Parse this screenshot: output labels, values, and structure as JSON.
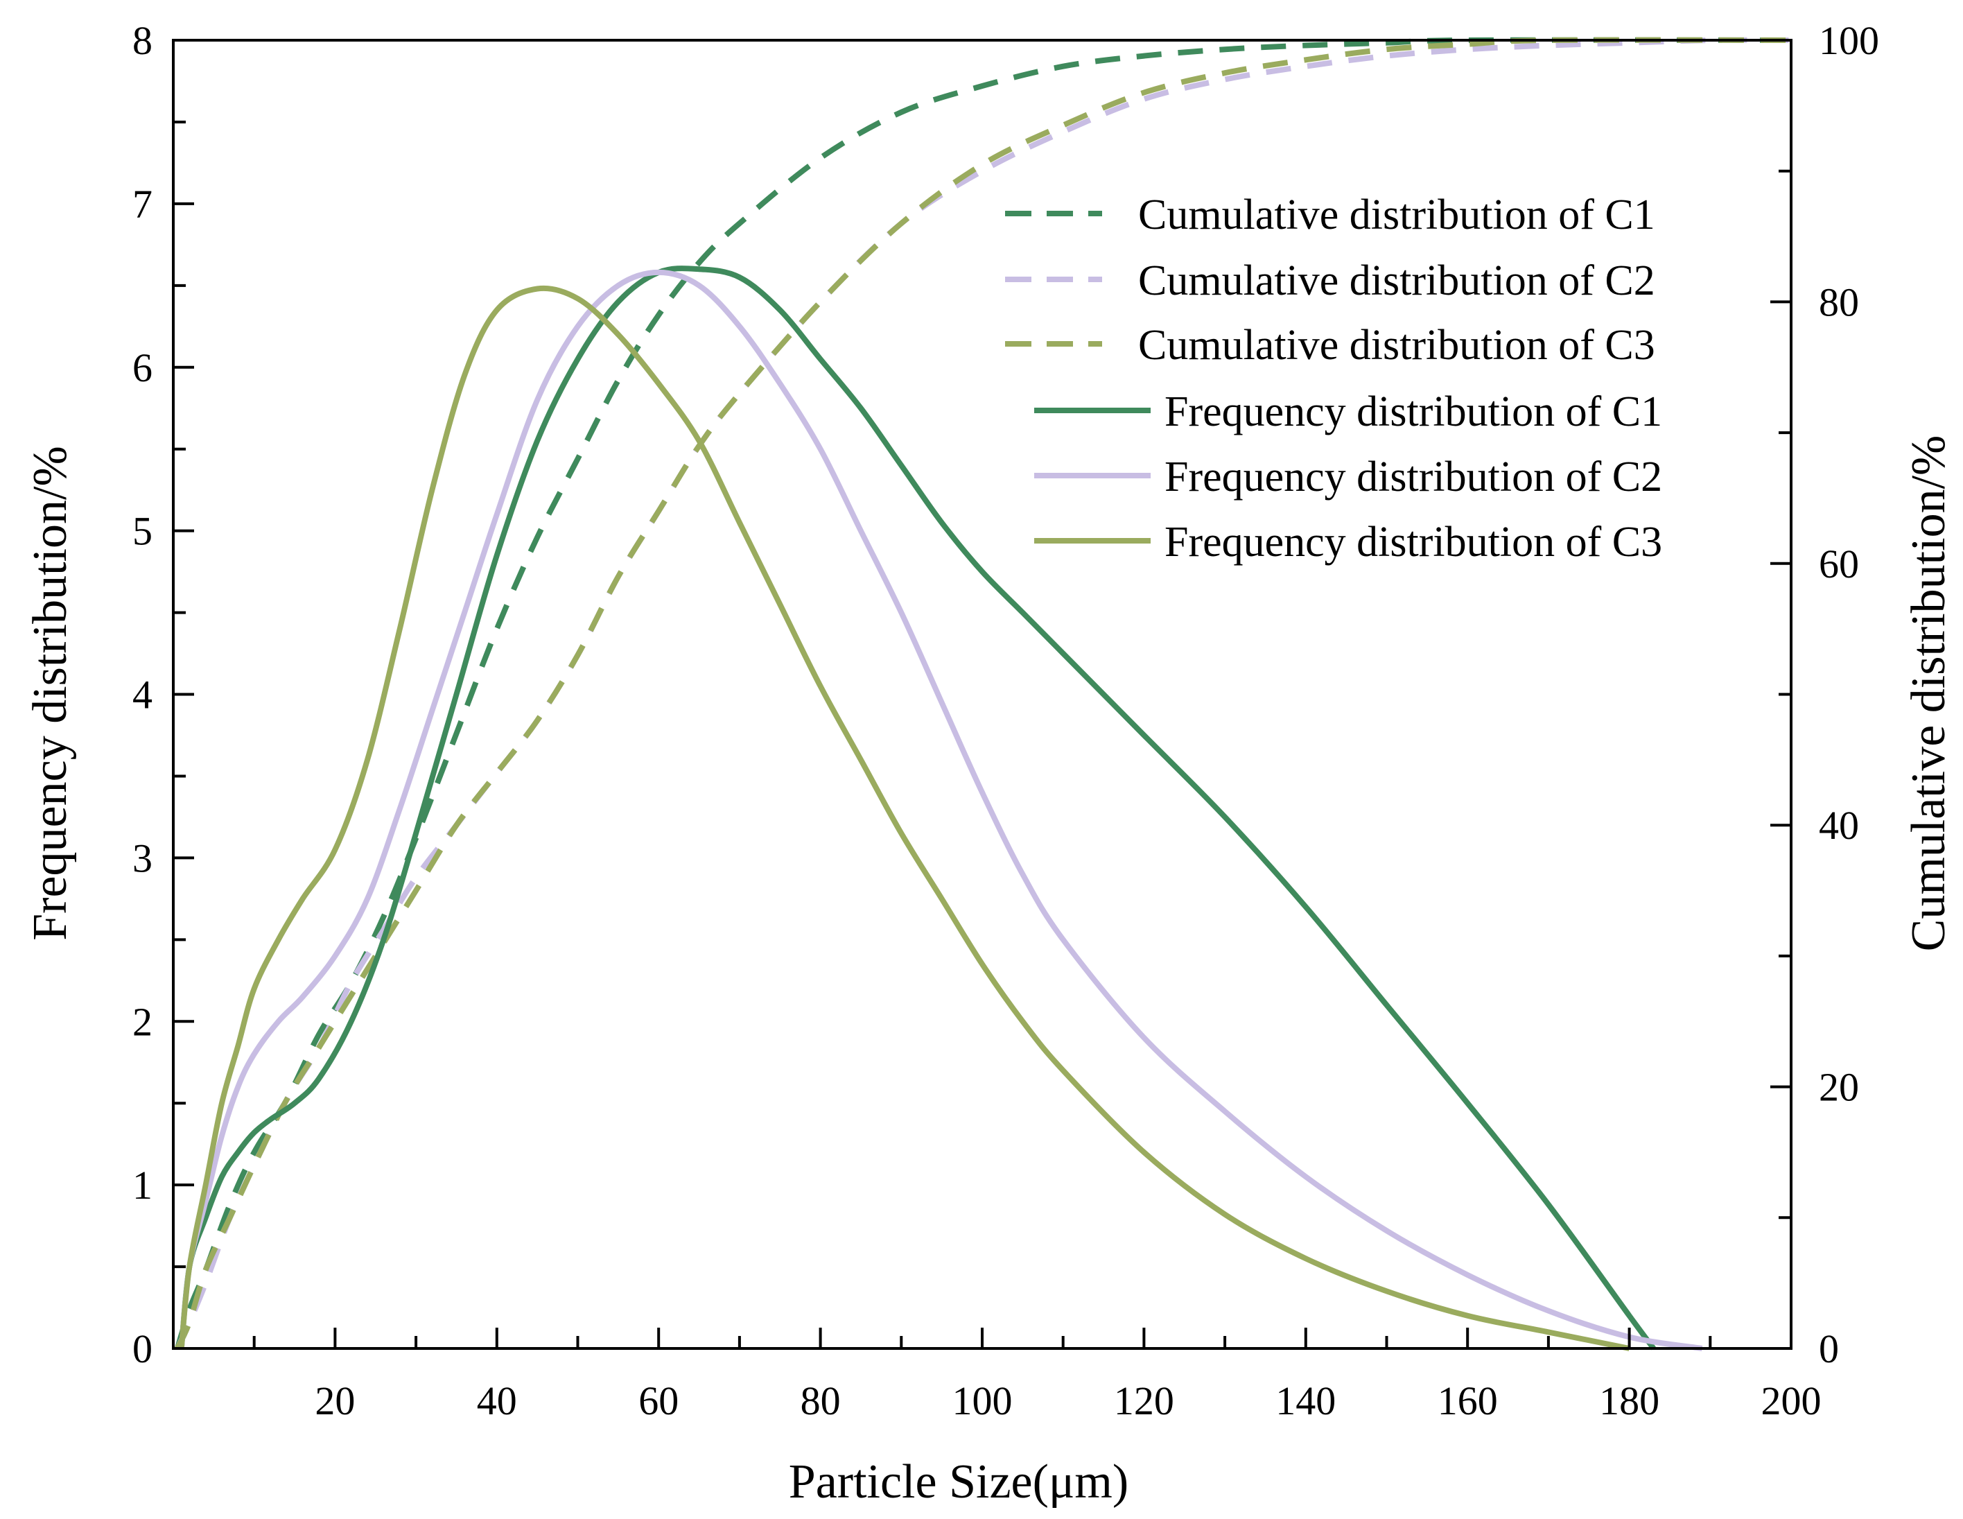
{
  "chart_data": {
    "type": "line",
    "title": "",
    "xlabel": "Particle Size(μm)",
    "ylabel": "Frequency distribution/%",
    "y2label": "Cumulative distribution/%",
    "xlim": [
      0,
      200
    ],
    "ylim": [
      0,
      8
    ],
    "y2lim": [
      0,
      100
    ],
    "x_ticks": [
      20,
      40,
      60,
      80,
      100,
      120,
      140,
      160,
      180,
      200
    ],
    "y_ticks": [
      0,
      1,
      2,
      3,
      4,
      5,
      6,
      7,
      8
    ],
    "y2_ticks": [
      0,
      20,
      40,
      60,
      80,
      100
    ],
    "legend_position": "right",
    "colors": {
      "C1": "#3f8a5c",
      "C2": "#c8bde3",
      "C3": "#9aab5e"
    },
    "series": [
      {
        "name": "Cumulative distribution of C1",
        "axis": "right",
        "style": "dashed",
        "color_key": "C1",
        "x": [
          0.5,
          2,
          4,
          7,
          10,
          14,
          18,
          22,
          26,
          30,
          35,
          40,
          45,
          50,
          55,
          60,
          65,
          70,
          80,
          90,
          100,
          110,
          120,
          130,
          140,
          150,
          160,
          200
        ],
        "y": [
          0,
          3,
          6,
          11,
          15,
          19,
          24,
          28,
          33,
          39,
          47,
          55,
          62,
          68,
          74,
          79,
          83,
          86,
          91,
          94.5,
          96.5,
          98,
          98.8,
          99.3,
          99.6,
          99.8,
          100,
          100
        ]
      },
      {
        "name": "Cumulative distribution of C2",
        "axis": "right",
        "style": "dashed",
        "color_key": "C2",
        "x": [
          0.5,
          2,
          4,
          7,
          10,
          14,
          18,
          22,
          26,
          30,
          35,
          40,
          45,
          50,
          55,
          60,
          65,
          70,
          80,
          90,
          100,
          110,
          120,
          130,
          140,
          150,
          160,
          170,
          180,
          190,
          200
        ],
        "y": [
          0,
          2,
          5,
          10,
          14,
          19,
          23,
          28,
          32,
          36,
          40,
          44,
          48,
          53,
          59,
          64,
          69,
          73,
          80,
          86,
          90,
          93,
          95.5,
          97,
          98,
          98.8,
          99.3,
          99.6,
          99.8,
          100,
          100
        ]
      },
      {
        "name": "Cumulative distribution of C3",
        "axis": "right",
        "style": "dashed",
        "color_key": "C3",
        "x": [
          0.5,
          2,
          4,
          7,
          10,
          14,
          18,
          22,
          26,
          30,
          35,
          40,
          45,
          50,
          55,
          60,
          65,
          70,
          80,
          90,
          100,
          110,
          120,
          130,
          140,
          150,
          160,
          170,
          200
        ],
        "y": [
          0,
          2,
          6,
          10,
          14,
          19,
          23,
          27,
          31,
          35,
          40,
          44,
          48,
          53,
          59,
          64,
          69,
          73,
          80,
          86,
          90.5,
          93.5,
          96,
          97.5,
          98.5,
          99.3,
          99.7,
          100,
          100
        ]
      },
      {
        "name": "Frequency distribution of C1",
        "axis": "left",
        "style": "solid",
        "color_key": "C1",
        "x": [
          1,
          2,
          4,
          6,
          8,
          10,
          12,
          15,
          18,
          22,
          26,
          30,
          35,
          40,
          45,
          50,
          55,
          60,
          65,
          70,
          75,
          80,
          85,
          90,
          95,
          100,
          105,
          110,
          120,
          130,
          140,
          150,
          160,
          170,
          180,
          183
        ],
        "y": [
          0,
          0.5,
          0.8,
          1.05,
          1.2,
          1.32,
          1.4,
          1.5,
          1.65,
          2.0,
          2.5,
          3.15,
          4.0,
          4.85,
          5.55,
          6.05,
          6.4,
          6.58,
          6.6,
          6.55,
          6.35,
          6.05,
          5.75,
          5.4,
          5.05,
          4.75,
          4.5,
          4.25,
          3.75,
          3.25,
          2.7,
          2.1,
          1.5,
          0.88,
          0.2,
          0
        ]
      },
      {
        "name": "Frequency distribution of C2",
        "axis": "left",
        "style": "solid",
        "color_key": "C2",
        "x": [
          1,
          2,
          4,
          6,
          8,
          10,
          13,
          16,
          20,
          24,
          28,
          32,
          36,
          40,
          45,
          50,
          55,
          60,
          65,
          70,
          75,
          80,
          85,
          90,
          95,
          100,
          105,
          110,
          120,
          130,
          140,
          150,
          160,
          170,
          180,
          189
        ],
        "y": [
          0,
          0.5,
          0.9,
          1.3,
          1.6,
          1.8,
          2.0,
          2.15,
          2.4,
          2.75,
          3.3,
          3.9,
          4.5,
          5.1,
          5.8,
          6.25,
          6.5,
          6.58,
          6.5,
          6.25,
          5.9,
          5.5,
          5.0,
          4.5,
          3.95,
          3.4,
          2.9,
          2.5,
          1.9,
          1.45,
          1.05,
          0.72,
          0.45,
          0.23,
          0.07,
          0
        ]
      },
      {
        "name": "Frequency distribution of C3",
        "axis": "left",
        "style": "solid",
        "color_key": "C3",
        "x": [
          1,
          2,
          4,
          6,
          8,
          10,
          13,
          16,
          20,
          24,
          28,
          32,
          36,
          40,
          45,
          50,
          55,
          60,
          65,
          70,
          75,
          80,
          85,
          90,
          95,
          100,
          105,
          110,
          120,
          130,
          140,
          150,
          160,
          170,
          180
        ],
        "y": [
          0,
          0.5,
          1.0,
          1.5,
          1.85,
          2.2,
          2.5,
          2.75,
          3.05,
          3.6,
          4.4,
          5.25,
          5.95,
          6.35,
          6.48,
          6.42,
          6.2,
          5.9,
          5.55,
          5.05,
          4.55,
          4.05,
          3.6,
          3.15,
          2.75,
          2.35,
          2.0,
          1.7,
          1.2,
          0.82,
          0.55,
          0.35,
          0.2,
          0.1,
          0
        ]
      }
    ]
  }
}
